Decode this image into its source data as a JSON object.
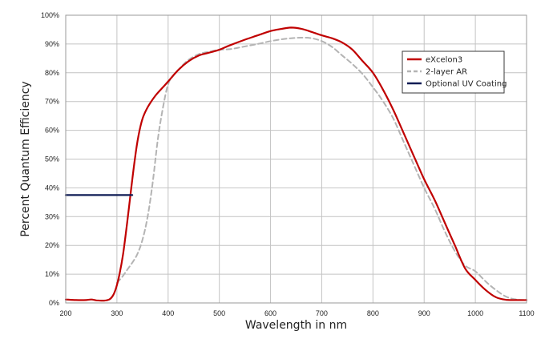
{
  "chart_data": {
    "type": "line",
    "title": "",
    "xlabel": "Wavelength in nm",
    "ylabel": "Percent Quantum Efficiency",
    "xlim": [
      200,
      1100
    ],
    "ylim": [
      0,
      100
    ],
    "x_ticks": [
      200,
      300,
      400,
      500,
      600,
      700,
      800,
      900,
      1000,
      1100
    ],
    "y_ticks": [
      0,
      10,
      20,
      30,
      40,
      50,
      60,
      70,
      80,
      90,
      100
    ],
    "x_tick_labels": [
      "200",
      "300",
      "400",
      "500",
      "600",
      "700",
      "800",
      "900",
      "1000",
      "1100"
    ],
    "y_tick_labels": [
      "0%",
      "10%",
      "20%",
      "30%",
      "40%",
      "50%",
      "60%",
      "70%",
      "80%",
      "90%",
      "100%"
    ],
    "grid": true,
    "legend_position": "top-right",
    "series": [
      {
        "name": "eXcelon3",
        "color": "#c00000",
        "style": "solid",
        "points": [
          [
            200,
            1.2
          ],
          [
            220,
            1
          ],
          [
            240,
            1
          ],
          [
            250,
            1.2
          ],
          [
            260,
            0.9
          ],
          [
            275,
            0.8
          ],
          [
            285,
            1.2
          ],
          [
            292,
            2.5
          ],
          [
            298,
            5
          ],
          [
            305,
            10
          ],
          [
            312,
            17
          ],
          [
            320,
            28
          ],
          [
            328,
            40
          ],
          [
            335,
            50
          ],
          [
            342,
            58
          ],
          [
            350,
            64
          ],
          [
            360,
            68
          ],
          [
            375,
            72
          ],
          [
            390,
            75
          ],
          [
            400,
            77
          ],
          [
            420,
            81
          ],
          [
            440,
            84
          ],
          [
            460,
            86
          ],
          [
            480,
            87
          ],
          [
            500,
            88
          ],
          [
            520,
            89.5
          ],
          [
            550,
            91.5
          ],
          [
            575,
            93
          ],
          [
            600,
            94.5
          ],
          [
            620,
            95.2
          ],
          [
            640,
            95.7
          ],
          [
            660,
            95.3
          ],
          [
            680,
            94.2
          ],
          [
            700,
            93
          ],
          [
            720,
            92
          ],
          [
            740,
            90.5
          ],
          [
            760,
            88
          ],
          [
            780,
            84
          ],
          [
            800,
            80
          ],
          [
            820,
            74
          ],
          [
            840,
            67
          ],
          [
            860,
            59
          ],
          [
            880,
            51
          ],
          [
            900,
            43
          ],
          [
            920,
            36
          ],
          [
            940,
            28
          ],
          [
            960,
            20
          ],
          [
            980,
            12
          ],
          [
            1000,
            8
          ],
          [
            1020,
            4.5
          ],
          [
            1040,
            2
          ],
          [
            1060,
            1.1
          ],
          [
            1080,
            1
          ],
          [
            1100,
            1
          ]
        ]
      },
      {
        "name": "2-layer AR",
        "color": "#b4b4b4",
        "style": "dashed",
        "points": [
          [
            300,
            7
          ],
          [
            310,
            9
          ],
          [
            320,
            11.5
          ],
          [
            330,
            14
          ],
          [
            340,
            17
          ],
          [
            350,
            22
          ],
          [
            360,
            30
          ],
          [
            370,
            42
          ],
          [
            380,
            57
          ],
          [
            390,
            68
          ],
          [
            400,
            76
          ],
          [
            410,
            79
          ],
          [
            425,
            82
          ],
          [
            440,
            84.5
          ],
          [
            460,
            86.5
          ],
          [
            480,
            87.3
          ],
          [
            500,
            88
          ],
          [
            520,
            88.2
          ],
          [
            540,
            88.8
          ],
          [
            560,
            89.5
          ],
          [
            580,
            90.2
          ],
          [
            600,
            91
          ],
          [
            620,
            91.6
          ],
          [
            640,
            92
          ],
          [
            660,
            92.2
          ],
          [
            680,
            92
          ],
          [
            700,
            91
          ],
          [
            720,
            89
          ],
          [
            740,
            86
          ],
          [
            760,
            83
          ],
          [
            780,
            79.5
          ],
          [
            800,
            75
          ],
          [
            820,
            70
          ],
          [
            840,
            64
          ],
          [
            860,
            56
          ],
          [
            880,
            48
          ],
          [
            900,
            40
          ],
          [
            920,
            33
          ],
          [
            940,
            25
          ],
          [
            960,
            18
          ],
          [
            980,
            13
          ],
          [
            1000,
            11
          ],
          [
            1020,
            7.5
          ],
          [
            1040,
            4.5
          ],
          [
            1060,
            2.2
          ],
          [
            1080,
            1.2
          ],
          [
            1100,
            1
          ]
        ]
      },
      {
        "name": "Optional UV Coating",
        "color": "#0f1c55",
        "style": "solid",
        "points": [
          [
            200,
            37.5
          ],
          [
            330,
            37.5
          ]
        ]
      }
    ]
  }
}
